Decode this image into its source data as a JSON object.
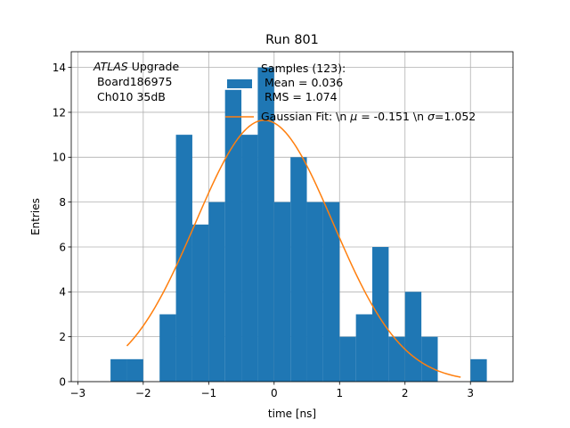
{
  "chart_data": {
    "type": "bar",
    "title": "Run 801",
    "xlabel": "time [ns]",
    "ylabel": "Entries",
    "xlim": [
      -3.1,
      3.65
    ],
    "ylim": [
      0,
      14.7
    ],
    "xticks": [
      -3,
      -2,
      -1,
      0,
      1,
      2,
      3
    ],
    "xtick_labels": [
      "−3",
      "−2",
      "−1",
      "0",
      "1",
      "2",
      "3"
    ],
    "yticks": [
      0,
      2,
      4,
      6,
      8,
      10,
      12,
      14
    ],
    "ytick_labels": [
      "0",
      "2",
      "4",
      "6",
      "8",
      "10",
      "12",
      "14"
    ],
    "grid": true,
    "bin_edges": [
      -2.5,
      -2.25,
      -2.0,
      -1.75,
      -1.5,
      -1.25,
      -1.0,
      -0.75,
      -0.5,
      -0.25,
      0.0,
      0.25,
      0.5,
      0.75,
      1.0,
      1.25,
      1.5,
      1.75,
      2.0,
      2.25,
      2.5,
      2.75,
      3.0,
      3.25
    ],
    "series": [
      {
        "name": "Samples (123):",
        "type": "histogram",
        "color": "#1f77b4",
        "values": [
          1,
          1,
          0,
          3,
          11,
          7,
          8,
          13,
          11,
          14,
          8,
          10,
          8,
          8,
          2,
          3,
          6,
          2,
          4,
          2,
          0,
          0,
          1
        ]
      },
      {
        "name": "Gaussian Fit",
        "type": "line",
        "color": "#ff7f0e",
        "amplitude": 11.65,
        "mu": -0.151,
        "sigma": 1.052,
        "x_range": [
          -2.25,
          2.85
        ]
      }
    ],
    "legend": {
      "position": "top-right",
      "entries": [
        {
          "label": "Samples (123):",
          "mean_line": " Mean = 0.036",
          "rms_line": " RMS = 1.074"
        },
        {
          "label_prefix": "Gaussian Fit: \\n ",
          "mu_sym": "μ",
          "mu_text": " = -0.151 \\n ",
          "sigma_sym": "σ",
          "sigma_text": "=1.052"
        }
      ]
    },
    "annotation": {
      "italic": "ATLAS",
      "rest": " Upgrade",
      "line2": " Board186975",
      "line3": " Ch010 35dB"
    }
  }
}
